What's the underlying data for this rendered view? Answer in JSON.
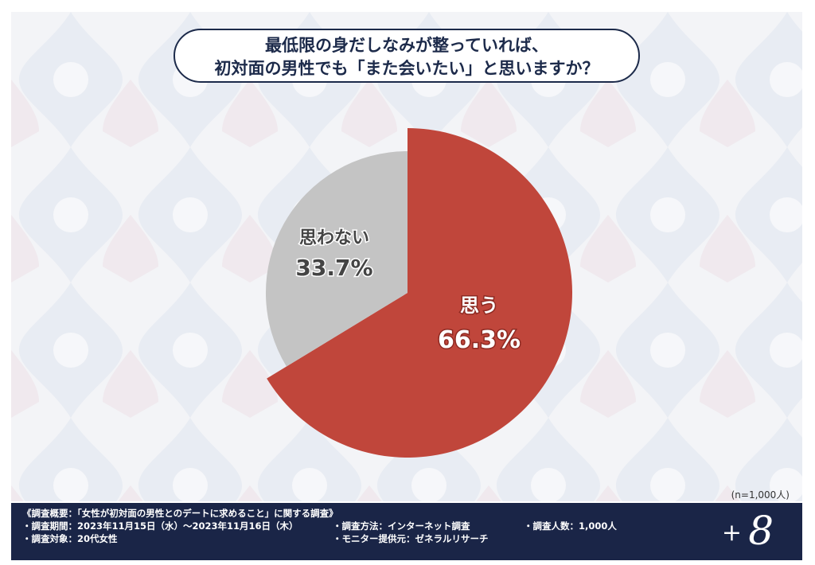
{
  "question": {
    "line1": "最低限の身だしなみが整っていれば、",
    "line2": "初対面の男性でも「また会いたい」と思いますか？"
  },
  "chart_data": {
    "type": "pie",
    "start_angle": "12 o'clock, clockwise",
    "slices": [
      {
        "label": "思う",
        "value": 66.3,
        "display": "66.3%",
        "color": "#c0463b"
      },
      {
        "label": "思わない",
        "value": 33.7,
        "display": "33.7%",
        "color": "#c4c4c4"
      }
    ],
    "note": "(n=1,000人)"
  },
  "footer": {
    "title": "《調査概要：「女性が初対面の男性とのデートに求めること」に関する調査》",
    "period": "・調査期間：2023年11月15日（水）〜2023年11月16日（木）",
    "method": "・調査方法：インターネット調査",
    "count": "・調査人数：1,000人",
    "target": "・調査対象：20代女性",
    "provider": "・モニター提供元：ゼネラルリサーチ"
  },
  "logo": {
    "plus": "+",
    "eight": "8"
  },
  "colors": {
    "navy": "#1a2547",
    "red": "#c0463b",
    "grey": "#c4c4c4"
  }
}
